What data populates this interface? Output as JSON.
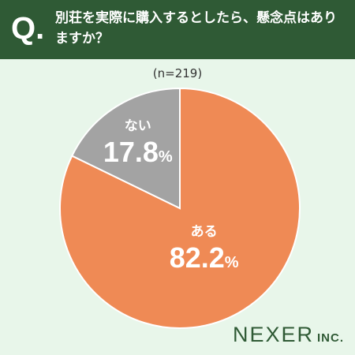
{
  "header": {
    "q_mark": "Q.",
    "question": "別荘を実際に購入するとしたら、懸念点はありますか？"
  },
  "sample_label": "(n=219)",
  "brand": {
    "name": "NEXER",
    "suffix": "INC."
  },
  "colors": {
    "header": "#2f5a35",
    "background": "#e8f6ea",
    "aru": "#ef8a55",
    "nai": "#a3a3a3"
  },
  "chart_data": {
    "type": "pie",
    "slices": [
      {
        "label": "ある",
        "value": 82.2,
        "color": "#ef8a55"
      },
      {
        "label": "ない",
        "value": 17.8,
        "color": "#a3a3a3"
      }
    ],
    "unit": "%"
  }
}
